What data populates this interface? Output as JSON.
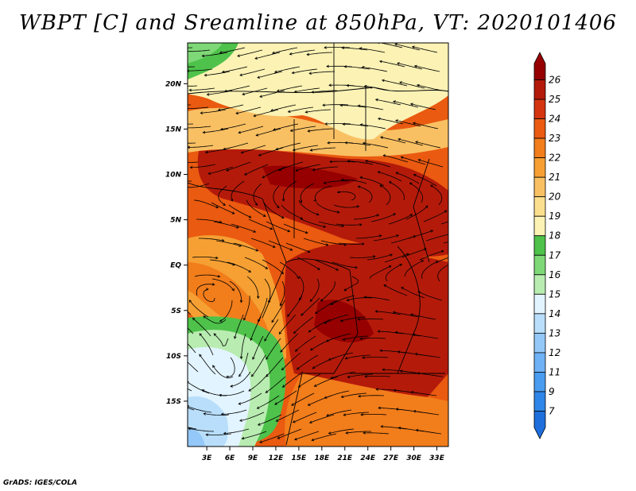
{
  "title": "WBPT [C] and Sreamline at 850hPa, VT: 2020101406",
  "credit": "GrADS: IGES/COLA",
  "chart_data": {
    "type": "heatmap",
    "title": "WBPT [C] and Sreamline at 850hPa, VT: 2020101406",
    "variable": "Wet-bulb potential temperature (C)",
    "overlay": "streamlines",
    "level": "850hPa",
    "valid_time": "2020101406",
    "x_ticks": [
      "3E",
      "6E",
      "9E",
      "12E",
      "15E",
      "18E",
      "21E",
      "24E",
      "27E",
      "30E",
      "33E"
    ],
    "x_tick_values": [
      3,
      6,
      9,
      12,
      15,
      18,
      21,
      24,
      27,
      30,
      33
    ],
    "y_ticks": [
      "20N",
      "15N",
      "10N",
      "5N",
      "EQ",
      "5S",
      "10S",
      "15S"
    ],
    "y_tick_values": [
      20,
      15,
      10,
      5,
      0,
      -5,
      -10,
      -15
    ],
    "xlim": [
      0.5,
      34.5
    ],
    "ylim": [
      -20,
      24.5
    ],
    "colorbar": {
      "levels": [
        "7",
        "9",
        "11",
        "12",
        "13",
        "14",
        "15",
        "16",
        "17",
        "18",
        "19",
        "20",
        "21",
        "22",
        "23",
        "24",
        "25",
        "26"
      ],
      "colors": [
        "#1e6fdc",
        "#2e86e8",
        "#4a9cf0",
        "#6fb2f5",
        "#94c8f8",
        "#b8defb",
        "#e2f4ff",
        "#b8ecb0",
        "#7fd877",
        "#4ec24a",
        "#fbf2b4",
        "#fbdf8e",
        "#f9c063",
        "#f6a033",
        "#f27d1b",
        "#ea5a10",
        "#d43410",
        "#b41a0a",
        "#960000"
      ]
    }
  }
}
